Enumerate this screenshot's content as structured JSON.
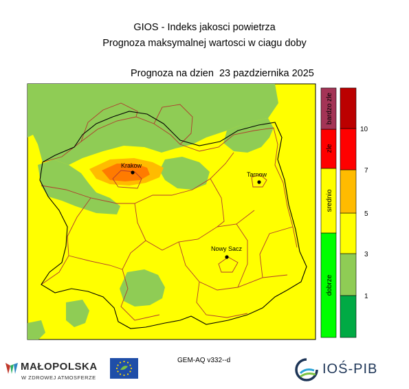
{
  "header": {
    "title_line1": "GIOS - Indeks jakosci powietrza",
    "title_line2": "Prognoza maksymalnej wartosci w ciagu doby",
    "forecast_date": "Prognoza na dzien  23 pazdziernika 2025"
  },
  "map": {
    "cities": [
      {
        "name": "Krakow"
      },
      {
        "name": "Tarnow"
      },
      {
        "name": "Nowy Sacz"
      }
    ],
    "colors": {
      "background": "#ffff00",
      "good": "#8fcc55",
      "moderate": "#ffbb00",
      "bad": "#ff7b00",
      "border": "#b03a2e",
      "outline": "#000000"
    }
  },
  "legend": {
    "categories": [
      {
        "label": "dobrze",
        "color": "#00ff00"
      },
      {
        "label": "srednio",
        "color": "#ffff00"
      },
      {
        "label": "zle",
        "color": "#ff0000"
      },
      {
        "label": "bardzo zle",
        "color": "#a43456"
      }
    ],
    "scale_colors": [
      "#00aa44",
      "#8fcc55",
      "#ffff00",
      "#ffbb00",
      "#ff0000",
      "#bb0000"
    ],
    "scale_ticks": [
      "1",
      "3",
      "5",
      "7",
      "10"
    ]
  },
  "footer": {
    "model_version": "GEM-AQ v332--d",
    "malopolska_name": "MAŁOPOLSKA",
    "malopolska_tagline": "W ZDROWEJ ATMOSFERZE",
    "ios_name": "IOŚ-PIB",
    "icons": [
      "malopolska-logo-icon",
      "eu-flag-icon",
      "life-logo-icon",
      "ios-pib-logo-icon"
    ]
  }
}
